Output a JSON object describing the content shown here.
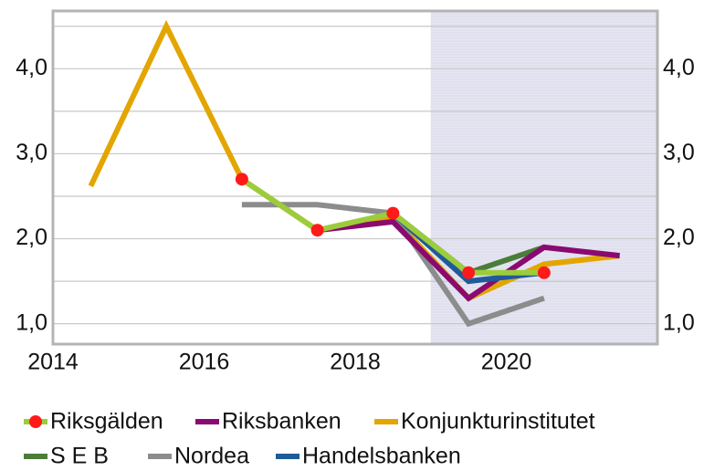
{
  "chart_data": {
    "type": "line",
    "x": [
      2014.5,
      2015.5,
      2016.5,
      2017.5,
      2018.5,
      2019.5,
      2020.5,
      2021.5
    ],
    "series": [
      {
        "name": "Konjunkturinstitutet",
        "color": "#e3a600",
        "values": [
          2.62,
          4.5,
          2.7,
          2.1,
          2.25,
          1.3,
          1.7,
          1.8
        ]
      },
      {
        "name": "Nordea",
        "color": "#8c8c8c",
        "values": [
          null,
          null,
          2.4,
          2.4,
          2.3,
          1.0,
          1.3,
          null
        ]
      },
      {
        "name": "S E B",
        "color": "#4b7d3a",
        "values": [
          null,
          null,
          null,
          null,
          2.3,
          1.6,
          1.9,
          null
        ]
      },
      {
        "name": "Riksbanken",
        "color": "#8a0a70",
        "values": [
          null,
          null,
          null,
          2.1,
          2.2,
          1.3,
          1.9,
          1.8
        ]
      },
      {
        "name": "Handelsbanken",
        "color": "#1f5a99",
        "values": [
          null,
          null,
          null,
          null,
          2.3,
          1.5,
          1.6,
          null
        ]
      },
      {
        "name": "Riksgälden",
        "color": "#9ccc3c",
        "marker_color": "#ff1a1a",
        "values": [
          null,
          null,
          2.7,
          2.1,
          2.3,
          1.6,
          1.6,
          null
        ]
      }
    ],
    "legend_order": [
      5,
      3,
      0,
      2,
      1,
      4
    ],
    "xlim": [
      2014,
      2022
    ],
    "xticks": [
      2014,
      2016,
      2018,
      2020
    ],
    "ylim": [
      0.76,
      4.68
    ],
    "yticks": [
      {
        "value": 1,
        "label": "1,0"
      },
      {
        "value": 2,
        "label": "2,0"
      },
      {
        "value": 3,
        "label": "3,0"
      },
      {
        "value": 4,
        "label": "4,0"
      }
    ],
    "minor_yticks": [
      1.5,
      2.5,
      3.5,
      4.5
    ],
    "shade_xlim": [
      2019,
      2022
    ],
    "grid": true,
    "right_axis": true,
    "legend": "bottom"
  }
}
